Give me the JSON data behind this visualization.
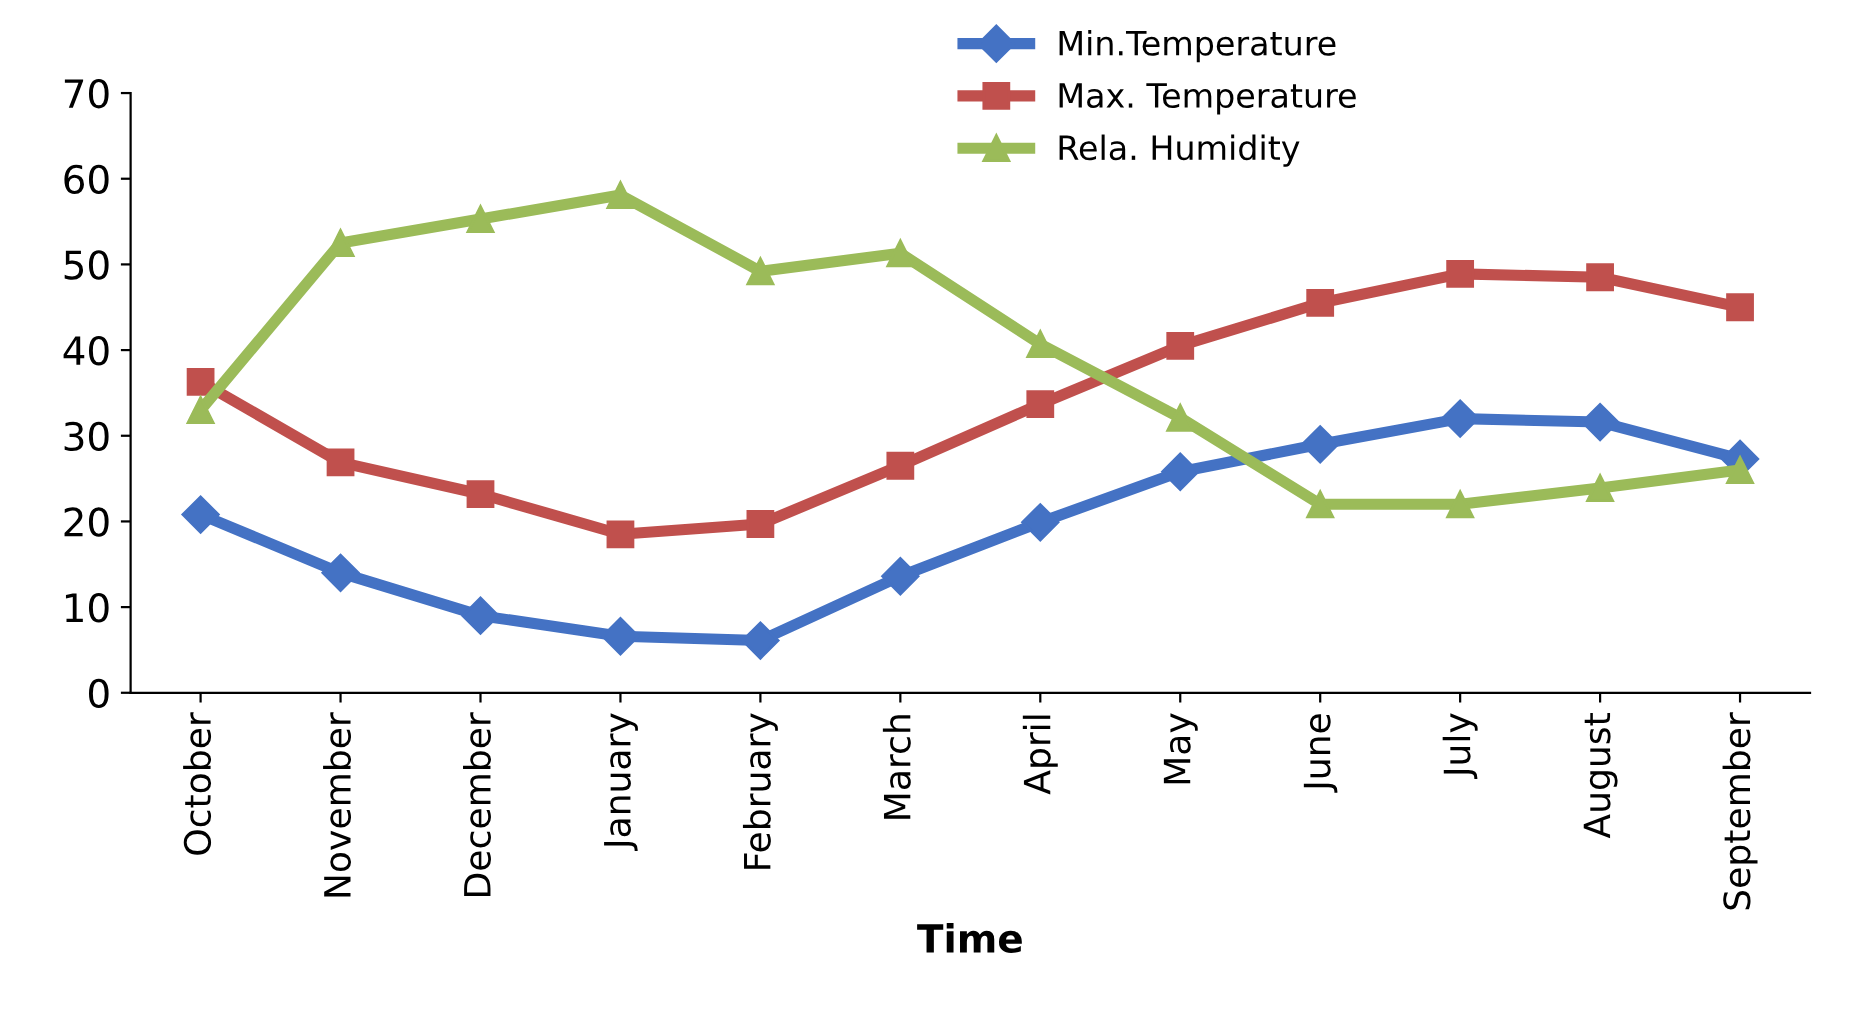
{
  "chart_data": {
    "type": "line",
    "xlabel": "Time",
    "categories": [
      "October",
      "November",
      "December",
      "January",
      "February",
      "March",
      "April",
      "May",
      "June",
      "July",
      "August",
      "September"
    ],
    "series": [
      {
        "name": "Min.Temperature",
        "color": "#4472c4",
        "marker": "diamond",
        "values": [
          20.8,
          14,
          9,
          6.6,
          6.1,
          13.6,
          19.9,
          25.8,
          29,
          32,
          31.6,
          27.3
        ]
      },
      {
        "name": "Max. Temperature",
        "color": "#c0504d",
        "marker": "square",
        "values": [
          36.3,
          26.9,
          23.2,
          18.5,
          19.7,
          26.5,
          33.7,
          40.5,
          45.5,
          48.9,
          48.5,
          45
        ]
      },
      {
        "name": "Rela. Humidity",
        "color": "#9bbb59",
        "marker": "triangle",
        "values": [
          33,
          52.5,
          55.3,
          58.1,
          49.2,
          51.3,
          40.7,
          32.1,
          22,
          22,
          23.9,
          26
        ]
      }
    ],
    "ylim": [
      0,
      70
    ],
    "yticks": [
      0,
      10,
      20,
      30,
      40,
      50,
      60,
      70
    ],
    "grid": false,
    "legend": "top right",
    "line_style": "solid"
  }
}
